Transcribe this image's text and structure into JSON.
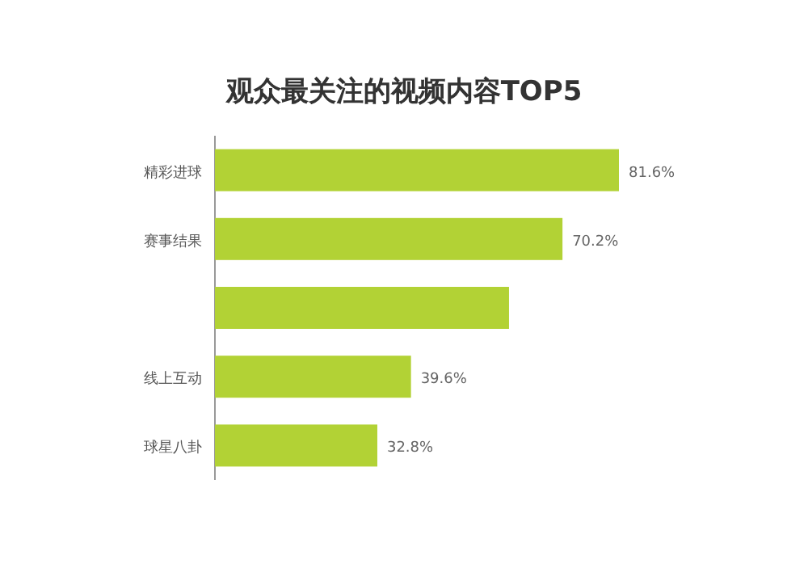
{
  "chart_data": {
    "type": "bar",
    "orientation": "horizontal",
    "title": "观众最关注的视频内容TOP5",
    "categories": [
      "精彩进球",
      "赛事结果",
      null,
      "线上互动",
      "球星八卦"
    ],
    "values": [
      81.6,
      70.2,
      59.4,
      39.6,
      32.8
    ],
    "value_labels": [
      "81.6%",
      "70.2%",
      null,
      "39.6%",
      "32.8%"
    ],
    "color": "#b2d235"
  }
}
